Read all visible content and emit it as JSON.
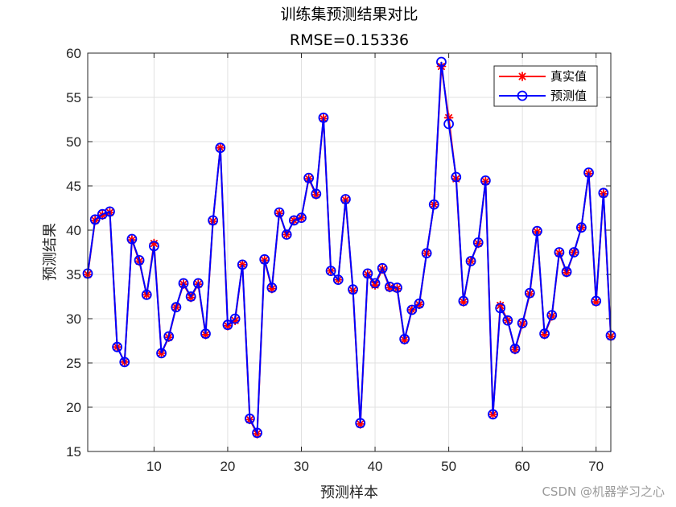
{
  "chart_data": {
    "type": "line",
    "title": "训练集预测结果对比",
    "subtitle": "RMSE=0.15336",
    "xlabel": "预测样本",
    "ylabel": "预测结果",
    "xlim": [
      1,
      72
    ],
    "ylim": [
      15,
      60
    ],
    "xticks": [
      10,
      20,
      30,
      40,
      50,
      60,
      70
    ],
    "yticks": [
      15,
      20,
      25,
      30,
      35,
      40,
      45,
      50,
      55,
      60
    ],
    "grid": true,
    "legend_position": "top-right",
    "x": [
      1,
      2,
      3,
      4,
      5,
      6,
      7,
      8,
      9,
      10,
      11,
      12,
      13,
      14,
      15,
      16,
      17,
      18,
      19,
      20,
      21,
      22,
      23,
      24,
      25,
      26,
      27,
      28,
      29,
      30,
      31,
      32,
      33,
      34,
      35,
      36,
      37,
      38,
      39,
      40,
      41,
      42,
      43,
      44,
      45,
      46,
      47,
      48,
      49,
      50,
      51,
      52,
      53,
      54,
      55,
      56,
      57,
      58,
      59,
      60,
      61,
      62,
      63,
      64,
      65,
      66,
      67,
      68,
      69,
      70,
      71,
      72
    ],
    "series": [
      {
        "name": "真实值",
        "color": "#ff0000",
        "marker": "asterisk",
        "values": [
          35.0,
          41.1,
          41.7,
          42.0,
          26.8,
          25.1,
          38.9,
          36.5,
          32.7,
          38.5,
          26.1,
          27.9,
          31.3,
          33.9,
          32.4,
          33.9,
          28.2,
          41.0,
          49.3,
          29.2,
          29.8,
          36.1,
          18.6,
          17.0,
          36.6,
          33.4,
          41.9,
          39.5,
          41.1,
          41.4,
          45.8,
          44.0,
          52.6,
          35.4,
          34.4,
          43.4,
          33.2,
          18.1,
          35.0,
          33.8,
          35.6,
          33.5,
          33.4,
          27.6,
          31.0,
          31.6,
          37.4,
          42.9,
          58.5,
          52.7,
          45.8,
          31.9,
          36.5,
          38.5,
          45.5,
          19.2,
          31.5,
          29.8,
          26.5,
          29.4,
          32.8,
          39.8,
          28.2,
          30.3,
          37.4,
          35.2,
          37.5,
          40.3,
          46.4,
          31.9,
          44.1,
          28.0
        ]
      },
      {
        "name": "预测值",
        "color": "#0000ff",
        "marker": "circle",
        "values": [
          35.1,
          41.2,
          41.8,
          42.1,
          26.8,
          25.1,
          39.0,
          36.6,
          32.7,
          38.2,
          26.1,
          28.0,
          31.3,
          34.0,
          32.5,
          34.0,
          28.3,
          41.1,
          49.3,
          29.3,
          30.0,
          36.1,
          18.7,
          17.1,
          36.7,
          33.5,
          42.0,
          39.5,
          41.1,
          41.4,
          45.9,
          44.1,
          52.7,
          35.4,
          34.4,
          43.5,
          33.3,
          18.2,
          35.1,
          34.0,
          35.7,
          33.6,
          33.5,
          27.7,
          31.0,
          31.7,
          37.4,
          42.9,
          59.0,
          52.0,
          46.0,
          32.0,
          36.5,
          38.6,
          45.6,
          19.2,
          31.2,
          29.8,
          26.6,
          29.5,
          32.9,
          39.9,
          28.3,
          30.4,
          37.5,
          35.3,
          37.5,
          40.3,
          46.5,
          32.0,
          44.2,
          28.1
        ]
      }
    ]
  },
  "watermark": "CSDN @机器学习之心"
}
